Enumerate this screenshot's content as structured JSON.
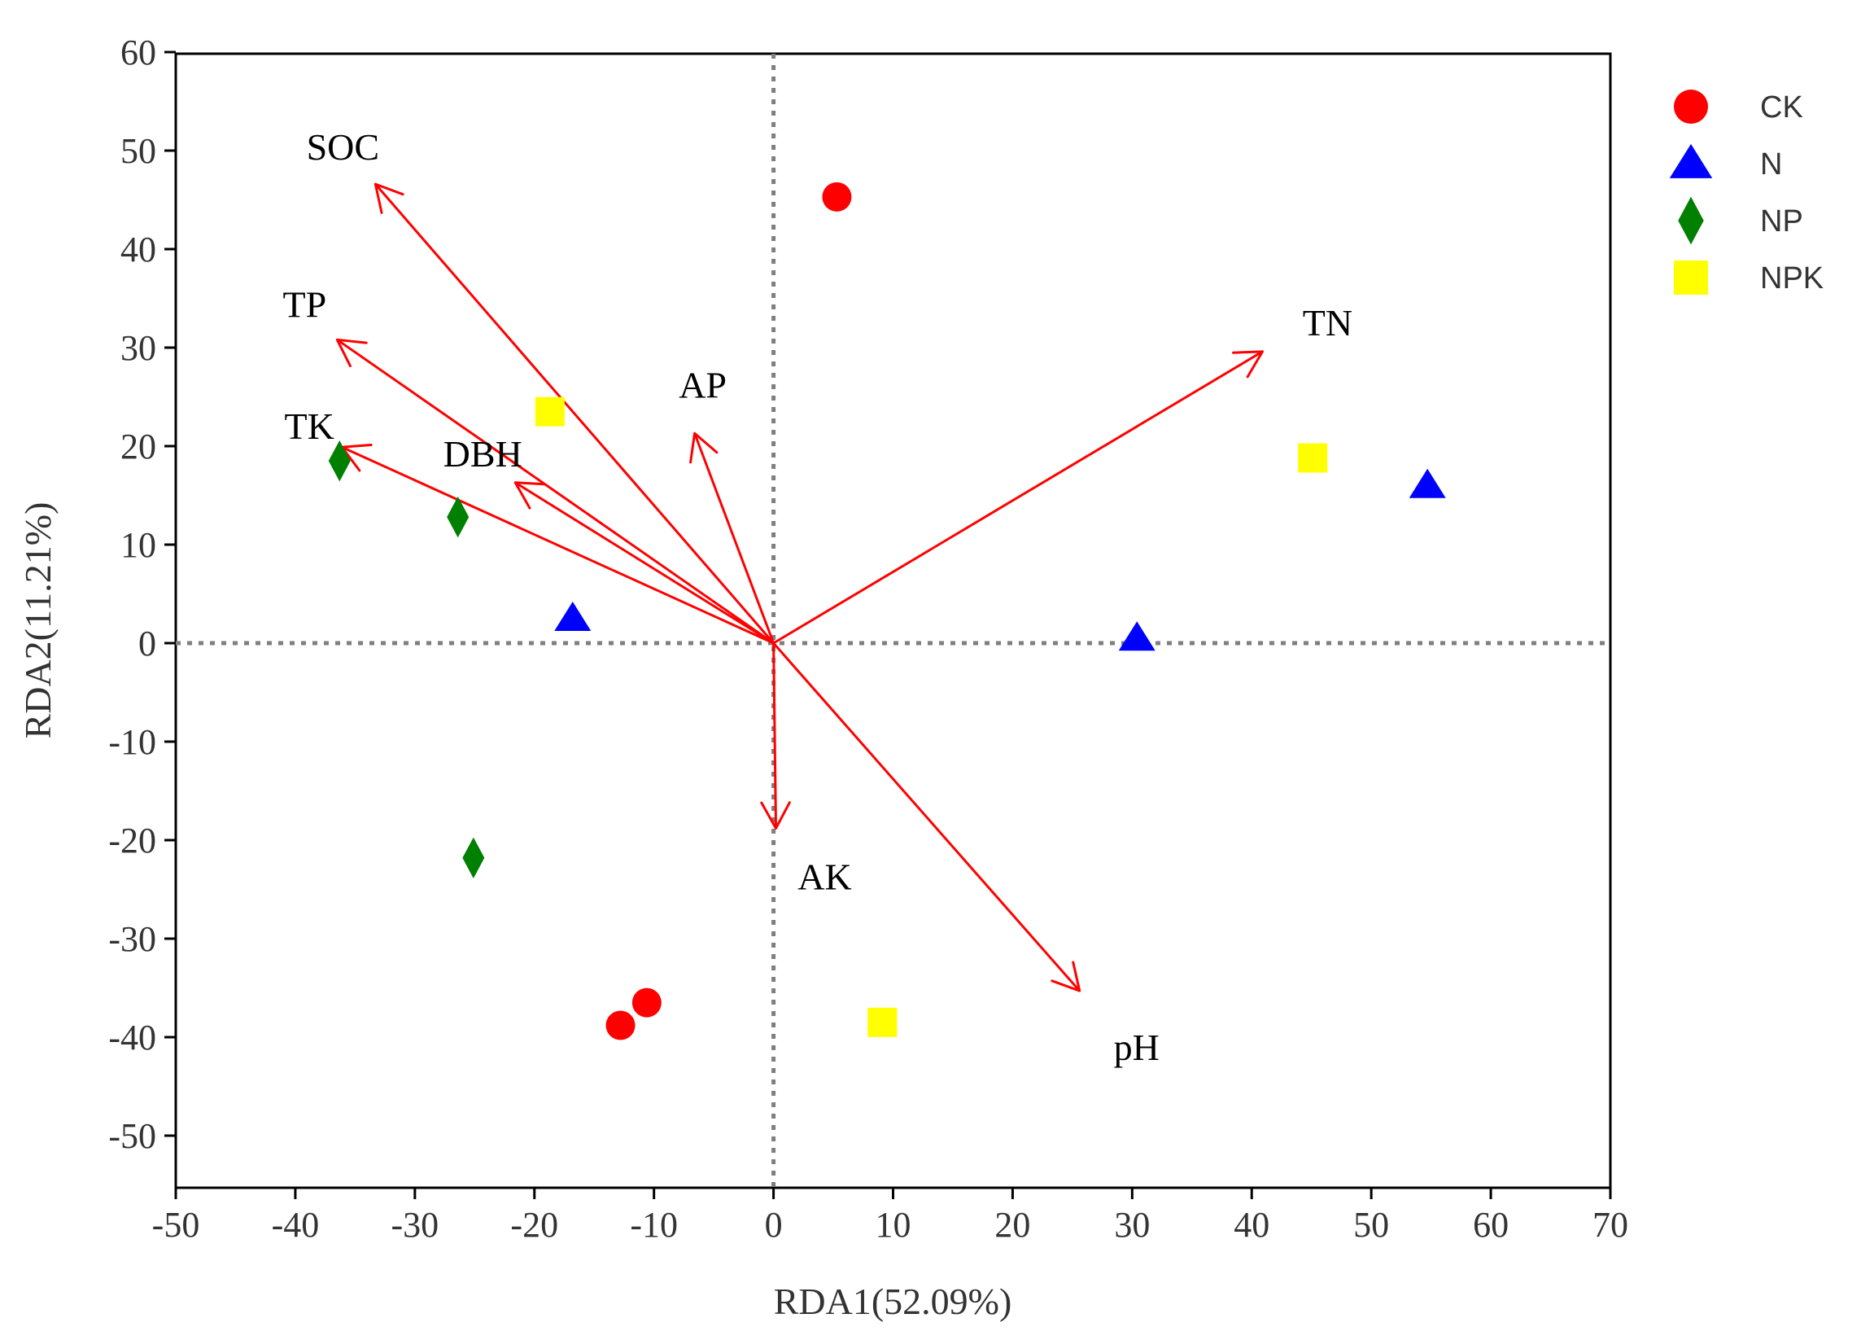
{
  "chart_data": {
    "type": "scatter",
    "subtype": "RDA biplot",
    "title": "",
    "xlabel": "RDA1(52.09%)",
    "ylabel": "RDA2(11.21%)",
    "xlim": [
      -50,
      70
    ],
    "ylim": [
      -55,
      60
    ],
    "xticks": [
      "-50",
      "-40",
      "-30",
      "-20",
      "-10",
      "0",
      "10",
      "20",
      "30",
      "40",
      "50",
      "60",
      "70"
    ],
    "yticks": [
      "60",
      "50",
      "40",
      "30",
      "20",
      "10",
      "0",
      "-10",
      "-20",
      "-30",
      "-40",
      "-50"
    ],
    "reference_lines": {
      "x": 0,
      "y": 0,
      "style": "dotted"
    },
    "legend_position": "right",
    "series": [
      {
        "name": "CK",
        "marker": "circle",
        "color": "#ff0000",
        "points": [
          [
            5.3,
            45.3
          ],
          [
            -12.8,
            -38.8
          ],
          [
            -10.6,
            -36.5
          ]
        ]
      },
      {
        "name": "N",
        "marker": "triangle",
        "color": "#0000ff",
        "points": [
          [
            54.7,
            16.0
          ],
          [
            30.4,
            0.5
          ],
          [
            -16.8,
            2.5
          ]
        ]
      },
      {
        "name": "NP",
        "marker": "diamond",
        "color": "#008000",
        "points": [
          [
            -36.3,
            18.5
          ],
          [
            -26.4,
            12.8
          ],
          [
            -25.1,
            -21.8
          ]
        ]
      },
      {
        "name": "NPK",
        "marker": "square",
        "color": "#ffff00",
        "points": [
          [
            45.1,
            18.8
          ],
          [
            -18.7,
            23.5
          ],
          [
            9.1,
            -38.5
          ]
        ]
      }
    ],
    "vectors": [
      {
        "label": "SOC",
        "x": -33.3,
        "y": 46.6
      },
      {
        "label": "TP",
        "x": -36.5,
        "y": 30.8
      },
      {
        "label": "TK",
        "x": -36.1,
        "y": 19.9
      },
      {
        "label": "DBH",
        "x": -21.6,
        "y": 16.3
      },
      {
        "label": "AP",
        "x": -6.6,
        "y": 21.3
      },
      {
        "label": "TN",
        "x": 40.9,
        "y": 29.6
      },
      {
        "label": "AK",
        "x": 0.2,
        "y": -18.8
      },
      {
        "label": "pH",
        "x": 25.6,
        "y": -35.3
      }
    ],
    "vector_color": "#ff0000"
  }
}
